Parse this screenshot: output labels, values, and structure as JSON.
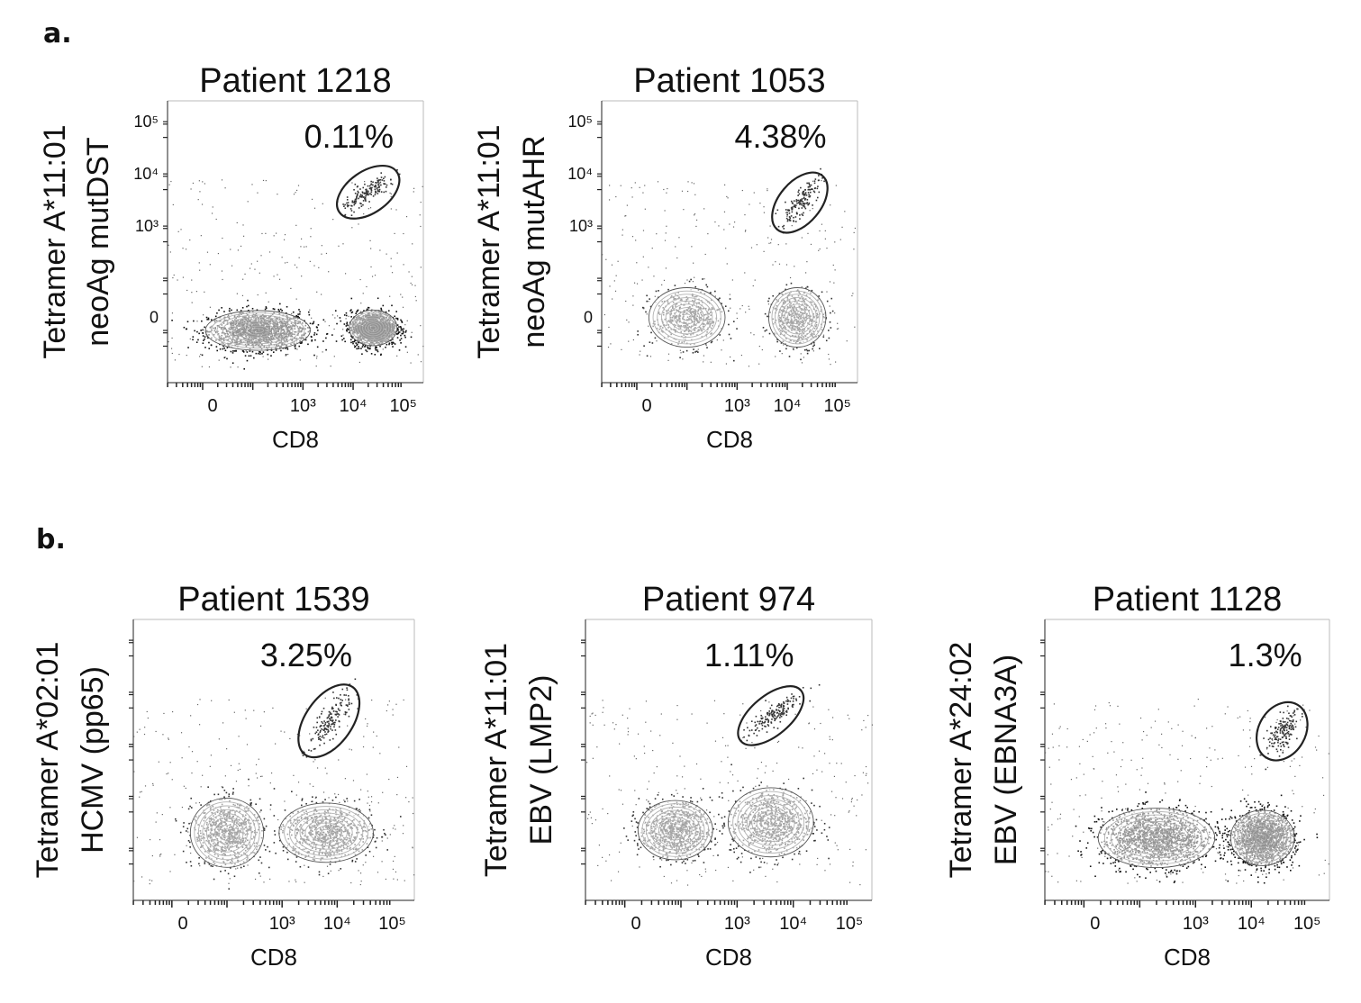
{
  "panels": [
    {
      "letter": "a."
    },
    {
      "letter": "b."
    }
  ],
  "chart_data": [
    {
      "type": "scatter",
      "panel": "a",
      "title": "Patient 1218",
      "ylabel_line1": "Tetramer A*11:01",
      "ylabel_line2": "neoAg mutDST",
      "xlabel": "CD8",
      "x_ticks": [
        "0",
        "10³",
        "10⁴",
        "10⁵"
      ],
      "y_ticks": [
        "0",
        "10³",
        "10⁴",
        "10⁵"
      ],
      "gate_percent": "0.11%",
      "density": "high",
      "populations": [
        {
          "name_hint": "CD8-neg",
          "cd8_log": 2.1,
          "tet_log": 1.0,
          "spread": [
            0.55,
            0.2
          ]
        },
        {
          "name_hint": "CD8-pos",
          "cd8_log": 4.4,
          "tet_log": 1.05,
          "spread": [
            0.25,
            0.18
          ]
        }
      ],
      "gate": {
        "cx_log": 4.3,
        "cy_log": 3.65,
        "rx_log": 0.7,
        "ry_log": 0.4,
        "angle": -35
      }
    },
    {
      "type": "scatter",
      "panel": "a",
      "title": "Patient 1053",
      "ylabel_line1": "Tetramer A*11:01",
      "ylabel_line2": "neoAg mutAHR",
      "xlabel": "CD8",
      "x_ticks": [
        "0",
        "10³",
        "10⁴",
        "10⁵"
      ],
      "y_ticks": [
        "0",
        "10³",
        "10⁴",
        "10⁵"
      ],
      "gate_percent": "4.38%",
      "density": "low",
      "populations": [
        {
          "name_hint": "CD8-neg",
          "cd8_log": 2.0,
          "tet_log": 1.25,
          "spread": [
            0.4,
            0.3
          ]
        },
        {
          "name_hint": "CD8-pos",
          "cd8_log": 4.2,
          "tet_log": 1.25,
          "spread": [
            0.3,
            0.3
          ]
        }
      ],
      "gate": {
        "cx_log": 4.25,
        "cy_log": 3.45,
        "rx_log": 0.7,
        "ry_log": 0.4,
        "angle": -50
      }
    },
    {
      "type": "scatter",
      "panel": "b",
      "title": "Patient 1539",
      "ylabel_line1": "Tetramer A*02:01",
      "ylabel_line2": "HCMV (pp65)",
      "xlabel": "CD8",
      "x_ticks": [
        "0",
        "10³",
        "10⁴",
        "10⁵"
      ],
      "y_ticks": [],
      "gate_percent": "3.25%",
      "density": "medium",
      "populations": [
        {
          "name_hint": "CD8-neg",
          "cd8_log": 2.0,
          "tet_log": 1.3,
          "spread": [
            0.35,
            0.35
          ]
        },
        {
          "name_hint": "CD8-pos",
          "cd8_log": 3.8,
          "tet_log": 1.3,
          "spread": [
            0.45,
            0.3
          ]
        }
      ],
      "gate": {
        "cx_log": 3.85,
        "cy_log": 3.45,
        "rx_log": 0.75,
        "ry_log": 0.45,
        "angle": -55
      }
    },
    {
      "type": "scatter",
      "panel": "b",
      "title": "Patient 974",
      "ylabel_line1": "Tetramer A*11:01",
      "ylabel_line2": "EBV (LMP2)",
      "xlabel": "CD8",
      "x_ticks": [
        "0",
        "10³",
        "10⁴",
        "10⁵"
      ],
      "y_ticks": [],
      "gate_percent": "1.11%",
      "density": "medium",
      "populations": [
        {
          "name_hint": "CD8-neg",
          "cd8_log": 1.9,
          "tet_log": 1.35,
          "spread": [
            0.35,
            0.3
          ]
        },
        {
          "name_hint": "CD8-pos",
          "cd8_log": 3.6,
          "tet_log": 1.5,
          "spread": [
            0.4,
            0.35
          ]
        }
      ],
      "gate": {
        "cx_log": 3.6,
        "cy_log": 3.55,
        "rx_log": 0.7,
        "ry_log": 0.38,
        "angle": -40
      }
    },
    {
      "type": "scatter",
      "panel": "b",
      "title": "Patient 1128",
      "ylabel_line1": "Tetramer A*24:02",
      "ylabel_line2": "EBV (EBNA3A)",
      "xlabel": "CD8",
      "x_ticks": [
        "0",
        "10³",
        "10⁴",
        "10⁵"
      ],
      "y_ticks": [],
      "gate_percent": "1.3%",
      "density": "high",
      "populations": [
        {
          "name_hint": "CD8-neg",
          "cd8_log": 2.3,
          "tet_log": 1.2,
          "spread": [
            0.55,
            0.3
          ]
        },
        {
          "name_hint": "CD8-pos",
          "cd8_log": 4.2,
          "tet_log": 1.2,
          "spread": [
            0.3,
            0.28
          ]
        }
      ],
      "gate": {
        "cx_log": 4.55,
        "cy_log": 3.25,
        "rx_log": 0.55,
        "ry_log": 0.45,
        "angle": -60
      }
    }
  ]
}
